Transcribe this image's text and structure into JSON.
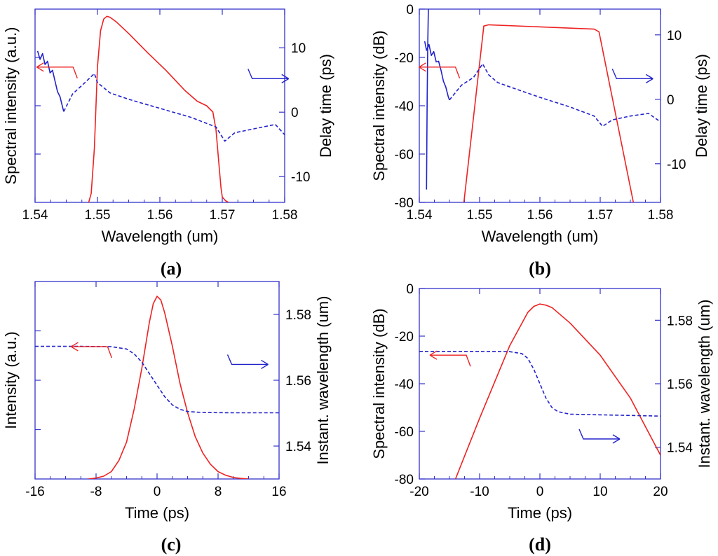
{
  "colors": {
    "left_series": "#ee2222",
    "right_series": "#2222cc",
    "frame": "#3333cc"
  },
  "chart_data": [
    {
      "panel": "(a)",
      "panel_letter": "a",
      "type": "line",
      "xlabel": "Wavelength (um)",
      "ylabel_left": "Spectral intensity (a.u.)",
      "ylabel_right": "Delay time (ps)",
      "xlim": [
        1.54,
        1.58
      ],
      "x_ticks": [
        "1.54",
        "1.55",
        "1.56",
        "1.57",
        "1.58"
      ],
      "x_tick_values": [
        1.54,
        1.55,
        1.56,
        1.57,
        1.58
      ],
      "ylim_left": [
        0,
        1.07
      ],
      "y_ticks_left": [],
      "y_tick_values_left": [],
      "left_minor_ticks": [
        0.2675,
        0.535,
        0.8025
      ],
      "ylim_right": [
        -14,
        16
      ],
      "y_ticks_right": [
        "10",
        "0",
        "-10"
      ],
      "y_tick_values_right": [
        10,
        0,
        -10
      ],
      "series": [
        {
          "axis": "left",
          "style": "solid",
          "x": [
            1.5486,
            1.549,
            1.5495,
            1.55,
            1.5505,
            1.551,
            1.5515,
            1.552,
            1.553,
            1.555,
            1.558,
            1.561,
            1.564,
            1.566,
            1.5675,
            1.5685,
            1.569,
            1.5695,
            1.5698,
            1.57,
            1.5705,
            1.571
          ],
          "y": [
            0,
            0.05,
            0.3,
            0.75,
            0.95,
            1.015,
            1.03,
            1.025,
            1.0,
            0.935,
            0.83,
            0.73,
            0.62,
            0.56,
            0.535,
            0.5,
            0.4,
            0.2,
            0.08,
            0.03,
            0.01,
            0
          ]
        },
        {
          "axis": "right",
          "style": "solid",
          "x": [
            1.5404,
            1.5408,
            1.5412,
            1.5416,
            1.542,
            1.5424,
            1.5428,
            1.5432,
            1.5436,
            1.544,
            1.5444,
            1.5446
          ],
          "y": [
            9.5,
            8.2,
            9.1,
            7.4,
            7.9,
            6.1,
            6.5,
            4.8,
            3.2,
            2.4,
            0.8,
            0.1
          ]
        },
        {
          "axis": "right",
          "style": "dashed",
          "x": [
            1.5446,
            1.546,
            1.548,
            1.5495,
            1.55,
            1.552,
            1.555,
            1.56,
            1.565,
            1.569,
            1.5704,
            1.572,
            1.575,
            1.5785,
            1.58
          ],
          "y": [
            0.1,
            2.8,
            4.6,
            6.0,
            4.6,
            3.0,
            2.0,
            0.6,
            -0.8,
            -2.3,
            -4.5,
            -3.2,
            -2.6,
            -1.9,
            -3.5
          ]
        }
      ],
      "arrows": [
        {
          "direction": "left",
          "color": "red",
          "x": 1.5434,
          "y_frac": 0.3
        },
        {
          "direction": "right",
          "color": "blue",
          "x": 1.5775,
          "y_frac": 0.36
        }
      ]
    },
    {
      "panel": "(b)",
      "panel_letter": "b",
      "type": "line",
      "xlabel": "Wavelength (um)",
      "ylabel_left": "Spectral intensity (dB)",
      "ylabel_right": "Delay time (ps)",
      "xlim": [
        1.54,
        1.58
      ],
      "x_ticks": [
        "1.54",
        "1.55",
        "1.56",
        "1.57",
        "1.58"
      ],
      "x_tick_values": [
        1.54,
        1.55,
        1.56,
        1.57,
        1.58
      ],
      "ylim_left": [
        -80,
        0
      ],
      "y_ticks_left": [
        "0",
        "-20",
        "-40",
        "-60",
        "-80"
      ],
      "y_tick_values_left": [
        0,
        -20,
        -40,
        -60,
        -80
      ],
      "left_minor_ticks": [],
      "ylim_right": [
        -16,
        14
      ],
      "y_ticks_right": [
        "10",
        "0",
        "-10"
      ],
      "y_tick_values_right": [
        10,
        0,
        -10
      ],
      "series": [
        {
          "axis": "left",
          "style": "solid",
          "x": [
            1.5474,
            1.5507,
            1.5515,
            1.569,
            1.5698,
            1.5755
          ],
          "y": [
            -80,
            -7,
            -6.5,
            -8.3,
            -9.4,
            -80
          ]
        },
        {
          "axis": "right",
          "style": "solid",
          "x": [
            1.5409,
            1.5412,
            1.5416,
            1.542,
            1.5424,
            1.5428,
            1.5432,
            1.5436,
            1.544,
            1.5444,
            1.5448,
            1.545
          ],
          "y": [
            9.0,
            7.6,
            8.5,
            6.8,
            7.4,
            5.8,
            5.9,
            4.5,
            2.8,
            1.9,
            0.4,
            -0.1
          ]
        },
        {
          "axis": "right",
          "style": "solid",
          "x": [
            1.5412,
            1.5413,
            1.5414,
            1.5415
          ],
          "y": [
            -14,
            0,
            8,
            14
          ]
        },
        {
          "axis": "right",
          "style": "dashed",
          "x": [
            1.545,
            1.547,
            1.549,
            1.5505,
            1.5515,
            1.553,
            1.556,
            1.56,
            1.565,
            1.569,
            1.5704,
            1.572,
            1.575,
            1.578,
            1.58
          ],
          "y": [
            -0.1,
            2.2,
            3.4,
            5.5,
            3.8,
            2.6,
            1.6,
            0.3,
            -1.2,
            -2.6,
            -4.2,
            -3.2,
            -2.6,
            -2.2,
            -3.5
          ]
        }
      ],
      "arrows": [
        {
          "direction": "left",
          "color": "red",
          "x": 1.5432,
          "y_frac": 0.3
        },
        {
          "direction": "right",
          "color": "blue",
          "x": 1.5755,
          "y_frac": 0.36
        }
      ]
    },
    {
      "panel": "(c)",
      "panel_letter": "c",
      "type": "line",
      "xlabel": "Time (ps)",
      "ylabel_left": "Intensity (a.u.)",
      "ylabel_right": "Instant. wavelength (um)",
      "xlim": [
        -16,
        16
      ],
      "x_ticks": [
        "-16",
        "-8",
        "0",
        "8",
        "16"
      ],
      "x_tick_values": [
        -16,
        -8,
        0,
        8,
        16
      ],
      "ylim_left": [
        0,
        1.07
      ],
      "y_ticks_left": [],
      "y_tick_values_left": [],
      "left_minor_ticks": [
        0.2675,
        0.535,
        0.8025
      ],
      "ylim_right": [
        1.53,
        1.59
      ],
      "y_ticks_right": [
        "1.58",
        "1.56",
        "1.54"
      ],
      "y_tick_values_right": [
        1.58,
        1.56,
        1.54
      ],
      "series": [
        {
          "axis": "left",
          "style": "solid",
          "x": [
            -9,
            -8,
            -7,
            -6,
            -5,
            -4,
            -3,
            -2,
            -1,
            -0.5,
            0,
            0.5,
            1,
            2,
            3,
            4,
            5,
            6,
            7,
            8,
            9,
            10,
            11,
            12
          ],
          "y": [
            0,
            0.005,
            0.015,
            0.04,
            0.1,
            0.2,
            0.38,
            0.6,
            0.85,
            0.95,
            0.99,
            0.97,
            0.9,
            0.72,
            0.52,
            0.36,
            0.23,
            0.14,
            0.08,
            0.04,
            0.02,
            0.008,
            0.003,
            0
          ]
        },
        {
          "axis": "right",
          "style": "dashed",
          "x": [
            -16,
            -10,
            -6,
            -4,
            -3,
            -2,
            -1,
            0,
            1,
            2,
            3,
            4,
            6,
            10,
            16
          ],
          "y": [
            1.5703,
            1.5703,
            1.5702,
            1.5695,
            1.568,
            1.5655,
            1.562,
            1.5585,
            1.555,
            1.5525,
            1.5512,
            1.5505,
            1.5502,
            1.5501,
            1.5501
          ]
        }
      ],
      "arrows": [
        {
          "direction": "left",
          "color": "red",
          "x": -8.7,
          "y_frac": 0.33
        },
        {
          "direction": "right",
          "color": "blue",
          "x": 12.0,
          "y_frac": 0.42
        }
      ]
    },
    {
      "panel": "(d)",
      "panel_letter": "d",
      "type": "line",
      "xlabel": "Time (ps)",
      "ylabel_left": "Spectral intensity (dB)",
      "ylabel_right": "Instant. wavelength (um)",
      "xlim": [
        -20,
        20
      ],
      "x_ticks": [
        "-20",
        "-10",
        "0",
        "10",
        "20"
      ],
      "x_tick_values": [
        -20,
        -10,
        0,
        10,
        20
      ],
      "ylim_left": [
        -80,
        0
      ],
      "y_ticks_left": [
        "0",
        "-20",
        "-40",
        "-60",
        "-80"
      ],
      "y_tick_values_left": [
        0,
        -20,
        -40,
        -60,
        -80
      ],
      "left_minor_ticks": [],
      "ylim_right": [
        1.53,
        1.59
      ],
      "y_ticks_right": [
        "1.58",
        "1.56",
        "1.54"
      ],
      "y_tick_values_right": [
        1.58,
        1.56,
        1.54
      ],
      "series": [
        {
          "axis": "left",
          "style": "solid",
          "x": [
            -14,
            -10,
            -5,
            -2,
            -1,
            0,
            1,
            2,
            5,
            10,
            15,
            20
          ],
          "y": [
            -80,
            -54.5,
            -24,
            -10,
            -7.5,
            -6.5,
            -7,
            -8,
            -14.5,
            -28,
            -46,
            -70
          ]
        },
        {
          "axis": "right",
          "style": "dashed",
          "x": [
            -20,
            -10,
            -5,
            -3,
            -2,
            -1,
            0,
            1,
            2,
            3,
            5,
            10,
            20
          ],
          "y": [
            1.5702,
            1.5702,
            1.5701,
            1.5695,
            1.568,
            1.5645,
            1.56,
            1.5555,
            1.5525,
            1.5512,
            1.5504,
            1.5502,
            1.5498
          ]
        }
      ],
      "arrows": [
        {
          "direction": "left",
          "color": "red",
          "x": -15,
          "y_frac": 0.35
        },
        {
          "direction": "right",
          "color": "blue",
          "x": 10,
          "y_frac": 0.79
        }
      ]
    }
  ]
}
